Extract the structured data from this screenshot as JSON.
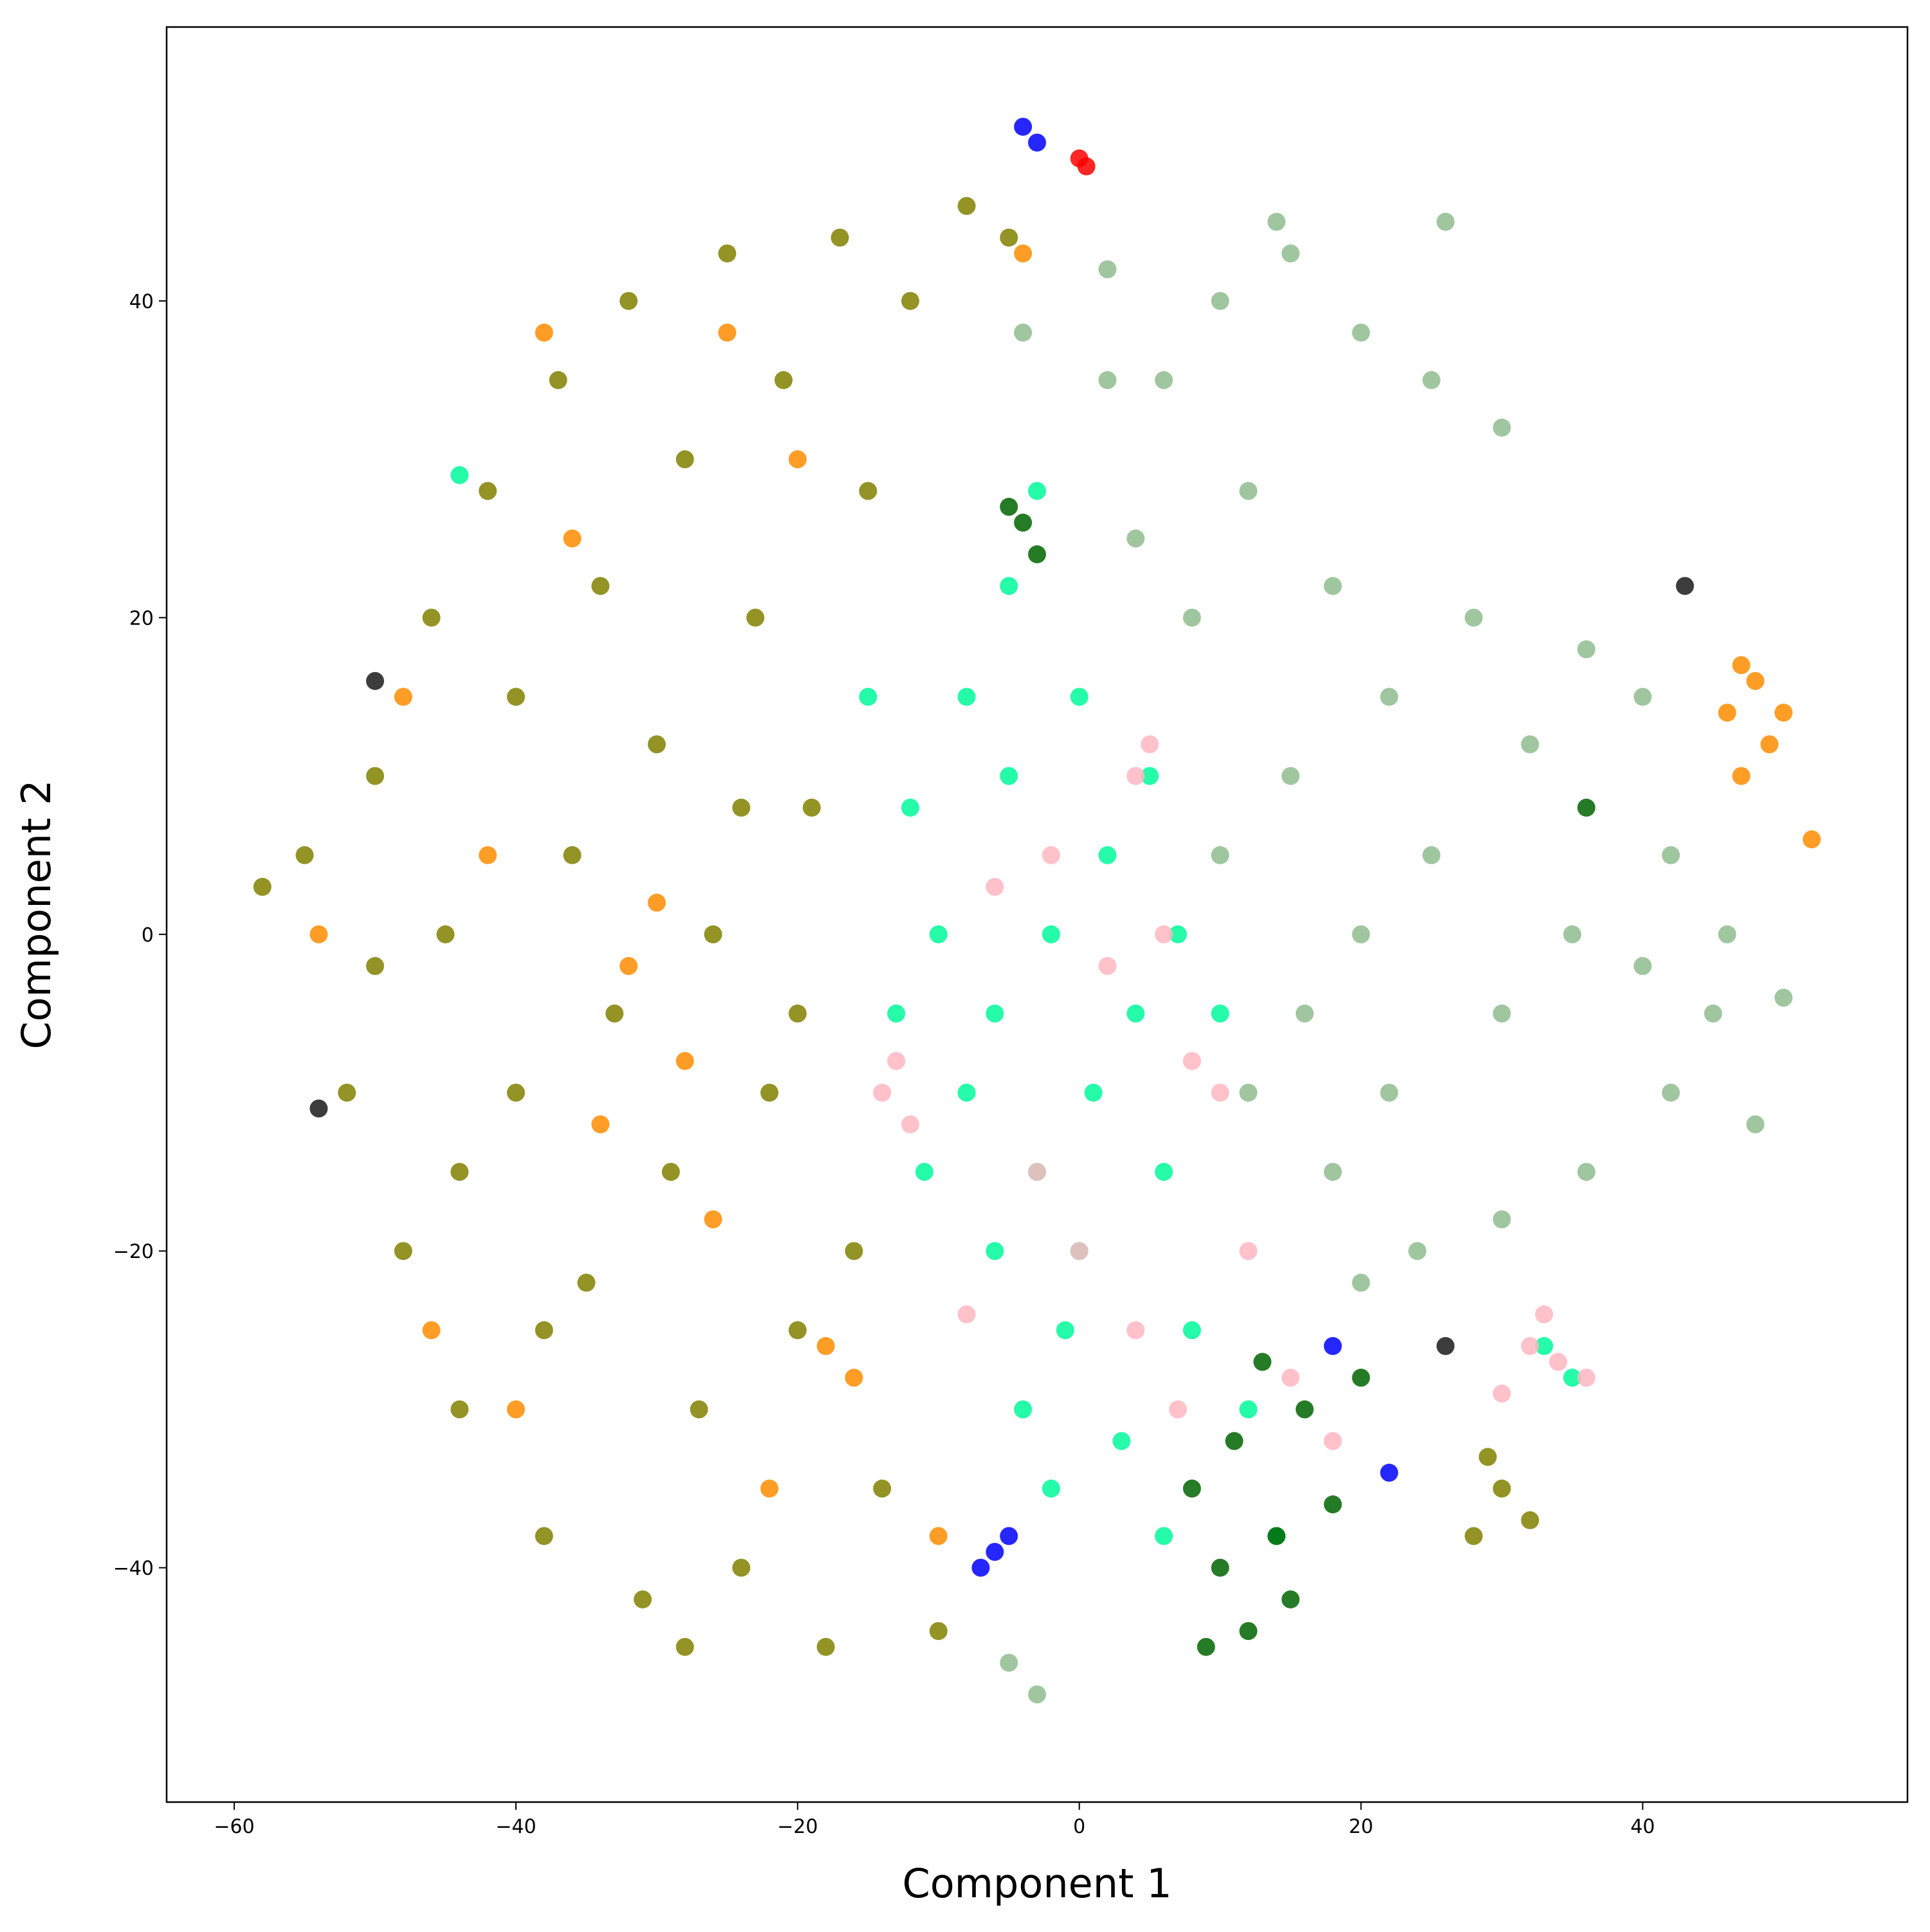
{
  "chart_data": {
    "type": "scatter",
    "x_label": "Component 1",
    "y_label": "Component 2",
    "xlim": [
      -64.8,
      58.8
    ],
    "ylim": [
      -54.8,
      57.3
    ],
    "xticks": [
      {
        "value": -60,
        "label": "−60"
      },
      {
        "value": -40,
        "label": "−40"
      },
      {
        "value": -20,
        "label": "−20"
      },
      0,
      20,
      40
    ],
    "yticks": [
      {
        "value": -40,
        "label": "−40"
      },
      {
        "value": -20,
        "label": "−20"
      },
      0,
      20,
      40
    ],
    "series": [
      {
        "color": "#ff8c00",
        "x": [
          -54,
          -48,
          -42,
          -40,
          -36,
          -32,
          -30,
          -28,
          -26,
          -34,
          -25,
          -20,
          -16,
          -22,
          -46,
          -38,
          -10,
          -4,
          46,
          48,
          49,
          47,
          50,
          47,
          52,
          -18
        ],
        "values": [
          0,
          15,
          5,
          -30,
          25,
          -2,
          2,
          -8,
          -18,
          -12,
          38,
          30,
          -28,
          -35,
          -25,
          38,
          -38,
          43,
          14,
          16,
          12,
          17,
          14,
          10,
          6,
          -26
        ]
      },
      {
        "color": "#808000",
        "x": [
          -55,
          -52,
          -50,
          -48,
          -46,
          -45,
          -44,
          -42,
          -40,
          -40,
          -38,
          -37,
          -36,
          -35,
          -34,
          -33,
          -32,
          -31,
          -30,
          -29,
          -28,
          -27,
          -26,
          -25,
          -24,
          -23,
          -22,
          -21,
          -20,
          -19,
          -18,
          -17,
          -16,
          -15,
          -14,
          -12,
          -20,
          -24,
          -44,
          -50,
          -58,
          -38,
          -28,
          -10,
          -8,
          -5,
          30,
          28,
          32,
          29
        ],
        "values": [
          5,
          -10,
          10,
          -20,
          20,
          0,
          -30,
          28,
          15,
          -10,
          -38,
          35,
          5,
          -22,
          22,
          -5,
          40,
          -42,
          12,
          -15,
          30,
          -30,
          0,
          43,
          -40,
          20,
          -10,
          35,
          -25,
          8,
          -45,
          44,
          -20,
          28,
          -35,
          40,
          -5,
          8,
          -15,
          -2,
          3,
          -25,
          -45,
          -44,
          46,
          44,
          -35,
          -38,
          -37,
          -33
        ]
      },
      {
        "color": "#8fbc8f",
        "x": [
          2,
          6,
          10,
          15,
          20,
          25,
          30,
          4,
          8,
          12,
          18,
          22,
          28,
          32,
          36,
          40,
          10,
          15,
          20,
          25,
          30,
          35,
          40,
          45,
          50,
          12,
          18,
          24,
          30,
          36,
          42,
          48,
          42,
          16,
          22,
          2,
          14,
          -4,
          -5,
          -3,
          46,
          26,
          20
        ],
        "values": [
          42,
          35,
          40,
          43,
          38,
          35,
          32,
          25,
          20,
          28,
          22,
          15,
          20,
          12,
          18,
          15,
          5,
          10,
          0,
          5,
          -5,
          0,
          -2,
          -5,
          -4,
          -10,
          -15,
          -20,
          -18,
          -15,
          -10,
          -12,
          5,
          -5,
          -10,
          35,
          45,
          38,
          -46,
          -48,
          0,
          45,
          -22
        ]
      },
      {
        "color": "#00fa9a",
        "x": [
          -15,
          -12,
          -10,
          -8,
          -6,
          -4,
          -2,
          0,
          2,
          4,
          6,
          8,
          10,
          -13,
          -5,
          -3,
          -1,
          3,
          5,
          -8,
          -6,
          1,
          7,
          -11,
          0,
          12,
          14,
          -2,
          6,
          -5,
          33,
          35,
          -44,
          -3
        ],
        "values": [
          15,
          8,
          0,
          -10,
          -20,
          -30,
          -35,
          15,
          5,
          -5,
          -15,
          -25,
          -5,
          -5,
          10,
          -15,
          -25,
          -32,
          10,
          15,
          -5,
          -10,
          0,
          -15,
          -20,
          -30,
          -38,
          0,
          -38,
          22,
          -26,
          -28,
          29,
          28
        ]
      },
      {
        "color": "#ffb6c1",
        "x": [
          -14,
          -13,
          -12,
          -2,
          2,
          4,
          6,
          8,
          0,
          -3,
          4,
          10,
          5,
          -6,
          7,
          15,
          18,
          12,
          32,
          34,
          36,
          30,
          33,
          -8
        ],
        "values": [
          -10,
          -8,
          -12,
          5,
          -2,
          10,
          0,
          -8,
          -20,
          -15,
          -25,
          -10,
          12,
          3,
          -30,
          -28,
          -32,
          -20,
          -26,
          -27,
          -28,
          -29,
          -24,
          -24
        ]
      },
      {
        "color": "#006400",
        "x": [
          8,
          10,
          12,
          14,
          16,
          18,
          20,
          11,
          15,
          9,
          13,
          -4,
          -3,
          -5,
          36
        ],
        "values": [
          -35,
          -40,
          -44,
          -38,
          -30,
          -36,
          -28,
          -32,
          -42,
          -45,
          -27,
          26,
          24,
          27,
          8
        ]
      },
      {
        "color": "#0000ff",
        "x": [
          -6,
          -7,
          -5,
          -4,
          -3,
          18,
          22
        ],
        "values": [
          -39,
          -40,
          -38,
          51,
          50,
          -26,
          -34
        ]
      },
      {
        "color": "#ff0000",
        "x": [
          0,
          0.5
        ],
        "values": [
          49,
          48.5
        ]
      },
      {
        "color": "#1a1a1a",
        "x": [
          43,
          -54,
          -50,
          26
        ],
        "values": [
          22,
          -11,
          16,
          -26
        ]
      }
    ]
  }
}
